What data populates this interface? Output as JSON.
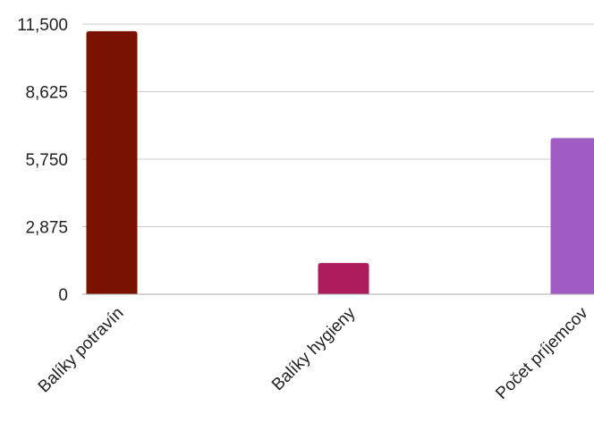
{
  "chart_data": {
    "type": "bar",
    "title": "",
    "xlabel": "",
    "ylabel": "",
    "categories": [
      "Balíky potravín",
      "Balíky hygieny",
      "Počet príjemcov"
    ],
    "values": [
      11200,
      1330,
      6650
    ],
    "colors": [
      "#7a1200",
      "#ad1c5c",
      "#a15cc4"
    ],
    "ylim": [
      0,
      11500
    ],
    "yticks": [
      0,
      2875,
      5750,
      8625,
      11500
    ],
    "ytick_labels": [
      "0",
      "2,875",
      "5,750",
      "8,625",
      "11,500"
    ],
    "grid": true,
    "legend": "none"
  }
}
